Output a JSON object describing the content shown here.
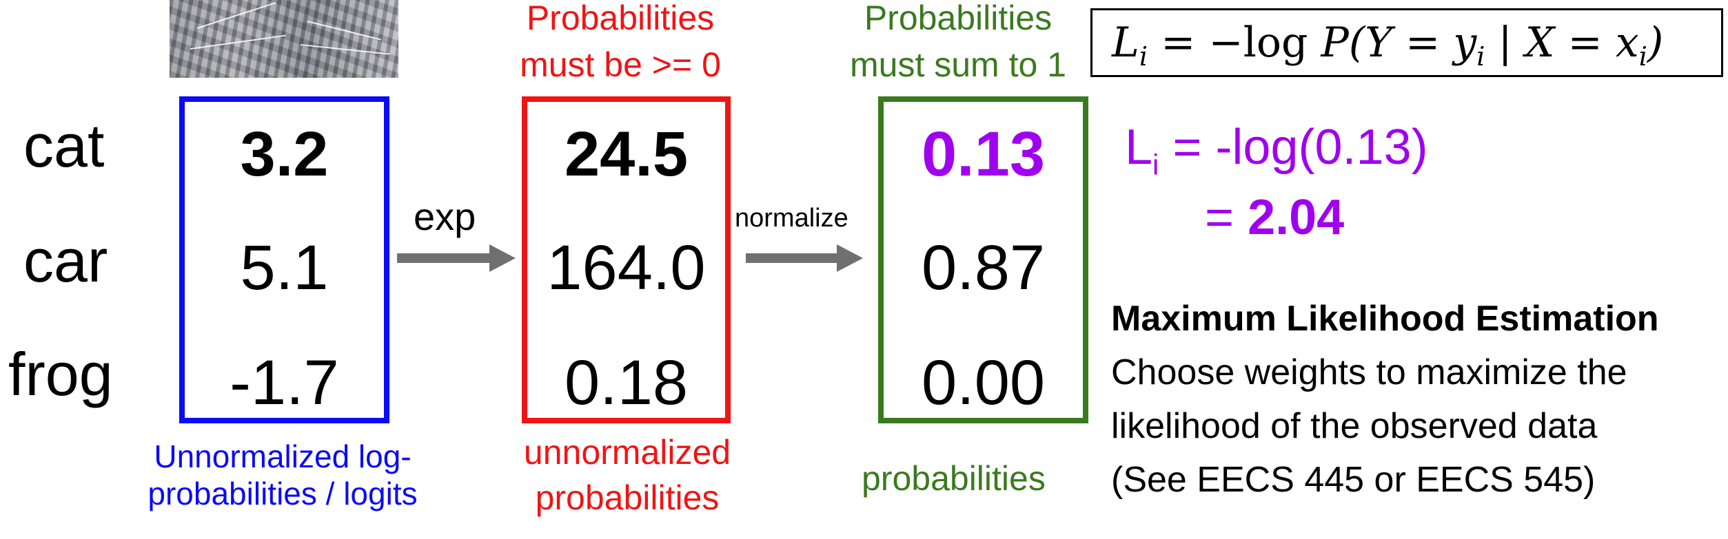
{
  "rows": {
    "cat": "cat",
    "car": "car",
    "frog": "frog"
  },
  "logits": {
    "cat": "3.2",
    "car": "5.1",
    "frog": "-1.7",
    "caption_line1": "Unnormalized log-",
    "caption_line2": "probabilities / logits"
  },
  "exp_step": {
    "label": "exp"
  },
  "unnormalized": {
    "cat": "24.5",
    "car": "164.0",
    "frog": "0.18",
    "top_caption_line1": "Probabilities",
    "top_caption_line2": "must be >= 0",
    "bottom_caption_line1": "unnormalized",
    "bottom_caption_line2": "probabilities"
  },
  "normalize_step": {
    "label": "normalize"
  },
  "probabilities": {
    "cat": "0.13",
    "car": "0.87",
    "frog": "0.00",
    "top_caption_line1": "Probabilities",
    "top_caption_line2": "must sum to 1",
    "bottom_caption": "probabilities"
  },
  "formula": {
    "lhs": "L",
    "lhs_sub": "i",
    "eq": " = −",
    "log": "log",
    "prob": " P(Y = y",
    "y_sub": "i",
    "mid": " | X = x",
    "x_sub": "i",
    "close": ")"
  },
  "loss_calc": {
    "line1_prefix": "L",
    "line1_sub": "i",
    "line1_rest": " = -log(0.13)",
    "line2_prefix": "= ",
    "line2_value": "2.04"
  },
  "mle": {
    "heading": "Maximum Likelihood Estimation",
    "line1": "Choose weights to maximize the",
    "line2": "likelihood of the observed data",
    "line3": "(See EECS 445 or EECS 545)"
  },
  "colors": {
    "logits": "#0b0bf5",
    "unnormalized": "#f01414",
    "probabilities": "#3a7a1e",
    "loss": "#a000f0",
    "arrow": "#707070"
  }
}
